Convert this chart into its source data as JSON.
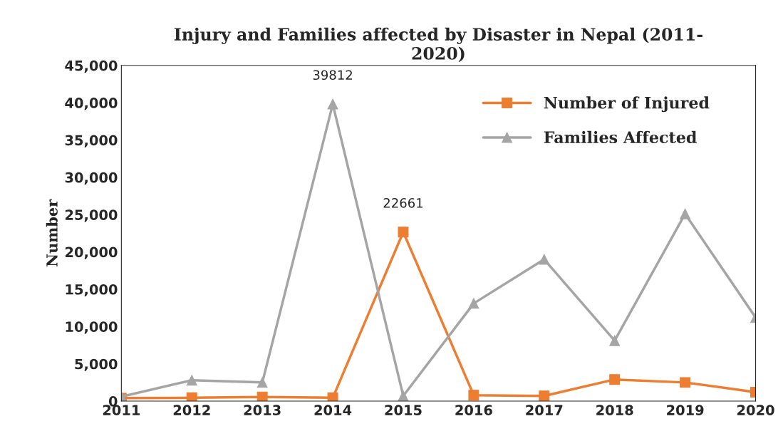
{
  "chart_data": {
    "type": "line",
    "title": "Injury and Families affected by Disaster in Nepal (2011-\n2020)",
    "ylabel": "Number",
    "categories": [
      "2011",
      "2012",
      "2013",
      "2014",
      "2015",
      "2016",
      "2017",
      "2018",
      "2019",
      "2020"
    ],
    "series": [
      {
        "name": "Number of Injured",
        "color": "#ed7d31",
        "marker": "square",
        "values": [
          400,
          450,
          550,
          450,
          22661,
          800,
          700,
          2900,
          2500,
          1200
        ],
        "value_labels": [
          null,
          null,
          null,
          null,
          "22661",
          null,
          null,
          null,
          null,
          null
        ]
      },
      {
        "name": "Families Affected",
        "color": "#a5a5a5",
        "marker": "triangle",
        "values": [
          600,
          2800,
          2500,
          39812,
          700,
          13100,
          19000,
          8100,
          25100,
          11200
        ],
        "value_labels": [
          null,
          null,
          null,
          "39812",
          null,
          null,
          null,
          null,
          null,
          null
        ]
      }
    ],
    "ylim": [
      0,
      45000
    ],
    "yticks": [
      {
        "value": 0,
        "label": "0"
      },
      {
        "value": 5000,
        "label": "5,000"
      },
      {
        "value": 10000,
        "label": "10,000"
      },
      {
        "value": 15000,
        "label": "15,000"
      },
      {
        "value": 20000,
        "label": "20,000"
      },
      {
        "value": 25000,
        "label": "25,000"
      },
      {
        "value": 30000,
        "label": "30,000"
      },
      {
        "value": 35000,
        "label": "35,000"
      },
      {
        "value": 40000,
        "label": "40,000"
      },
      {
        "value": 45000,
        "label": "45,000"
      }
    ],
    "grid": false,
    "legend": "top right",
    "line_style": "solid"
  }
}
